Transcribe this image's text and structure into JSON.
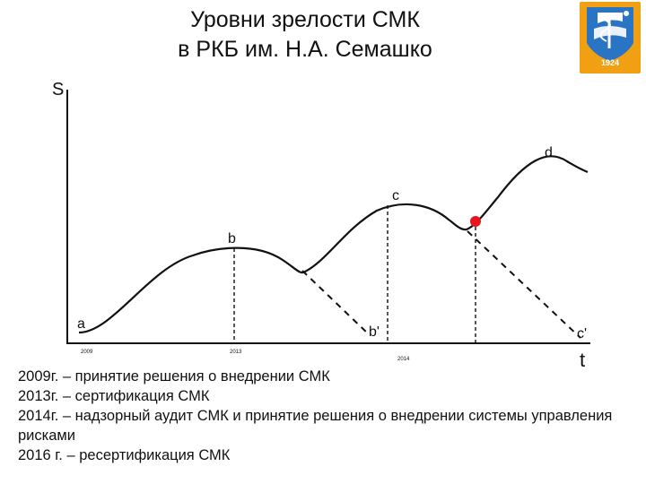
{
  "slide": {
    "title_line1": "Уровни зрелости СМК",
    "title_line2": "в РКБ им. Н.А. Семашко"
  },
  "logo": {
    "icon": "medical-emblem-icon",
    "year": "1924",
    "colors": {
      "background": "#f0a012",
      "emblem": "#2a74c4"
    }
  },
  "diagram": {
    "y_axis_label": "S",
    "x_axis_label": "t",
    "tick_labels": [
      "2009",
      "2013",
      "2014"
    ],
    "point_labels": {
      "a": "a",
      "b": "b",
      "c": "c",
      "d": "d",
      "b_prime": "b'",
      "c_prime": "c'"
    },
    "marker_color": "#e8141c"
  },
  "notes": [
    "2009г. – принятие решения о внедрении СМК",
    "2013г. – сертификация СМК",
    "2014г. – надзорный аудит СМК и принятие решения о внедрении системы управления рисками",
    "2016 г. – ресертификация СМК"
  ]
}
